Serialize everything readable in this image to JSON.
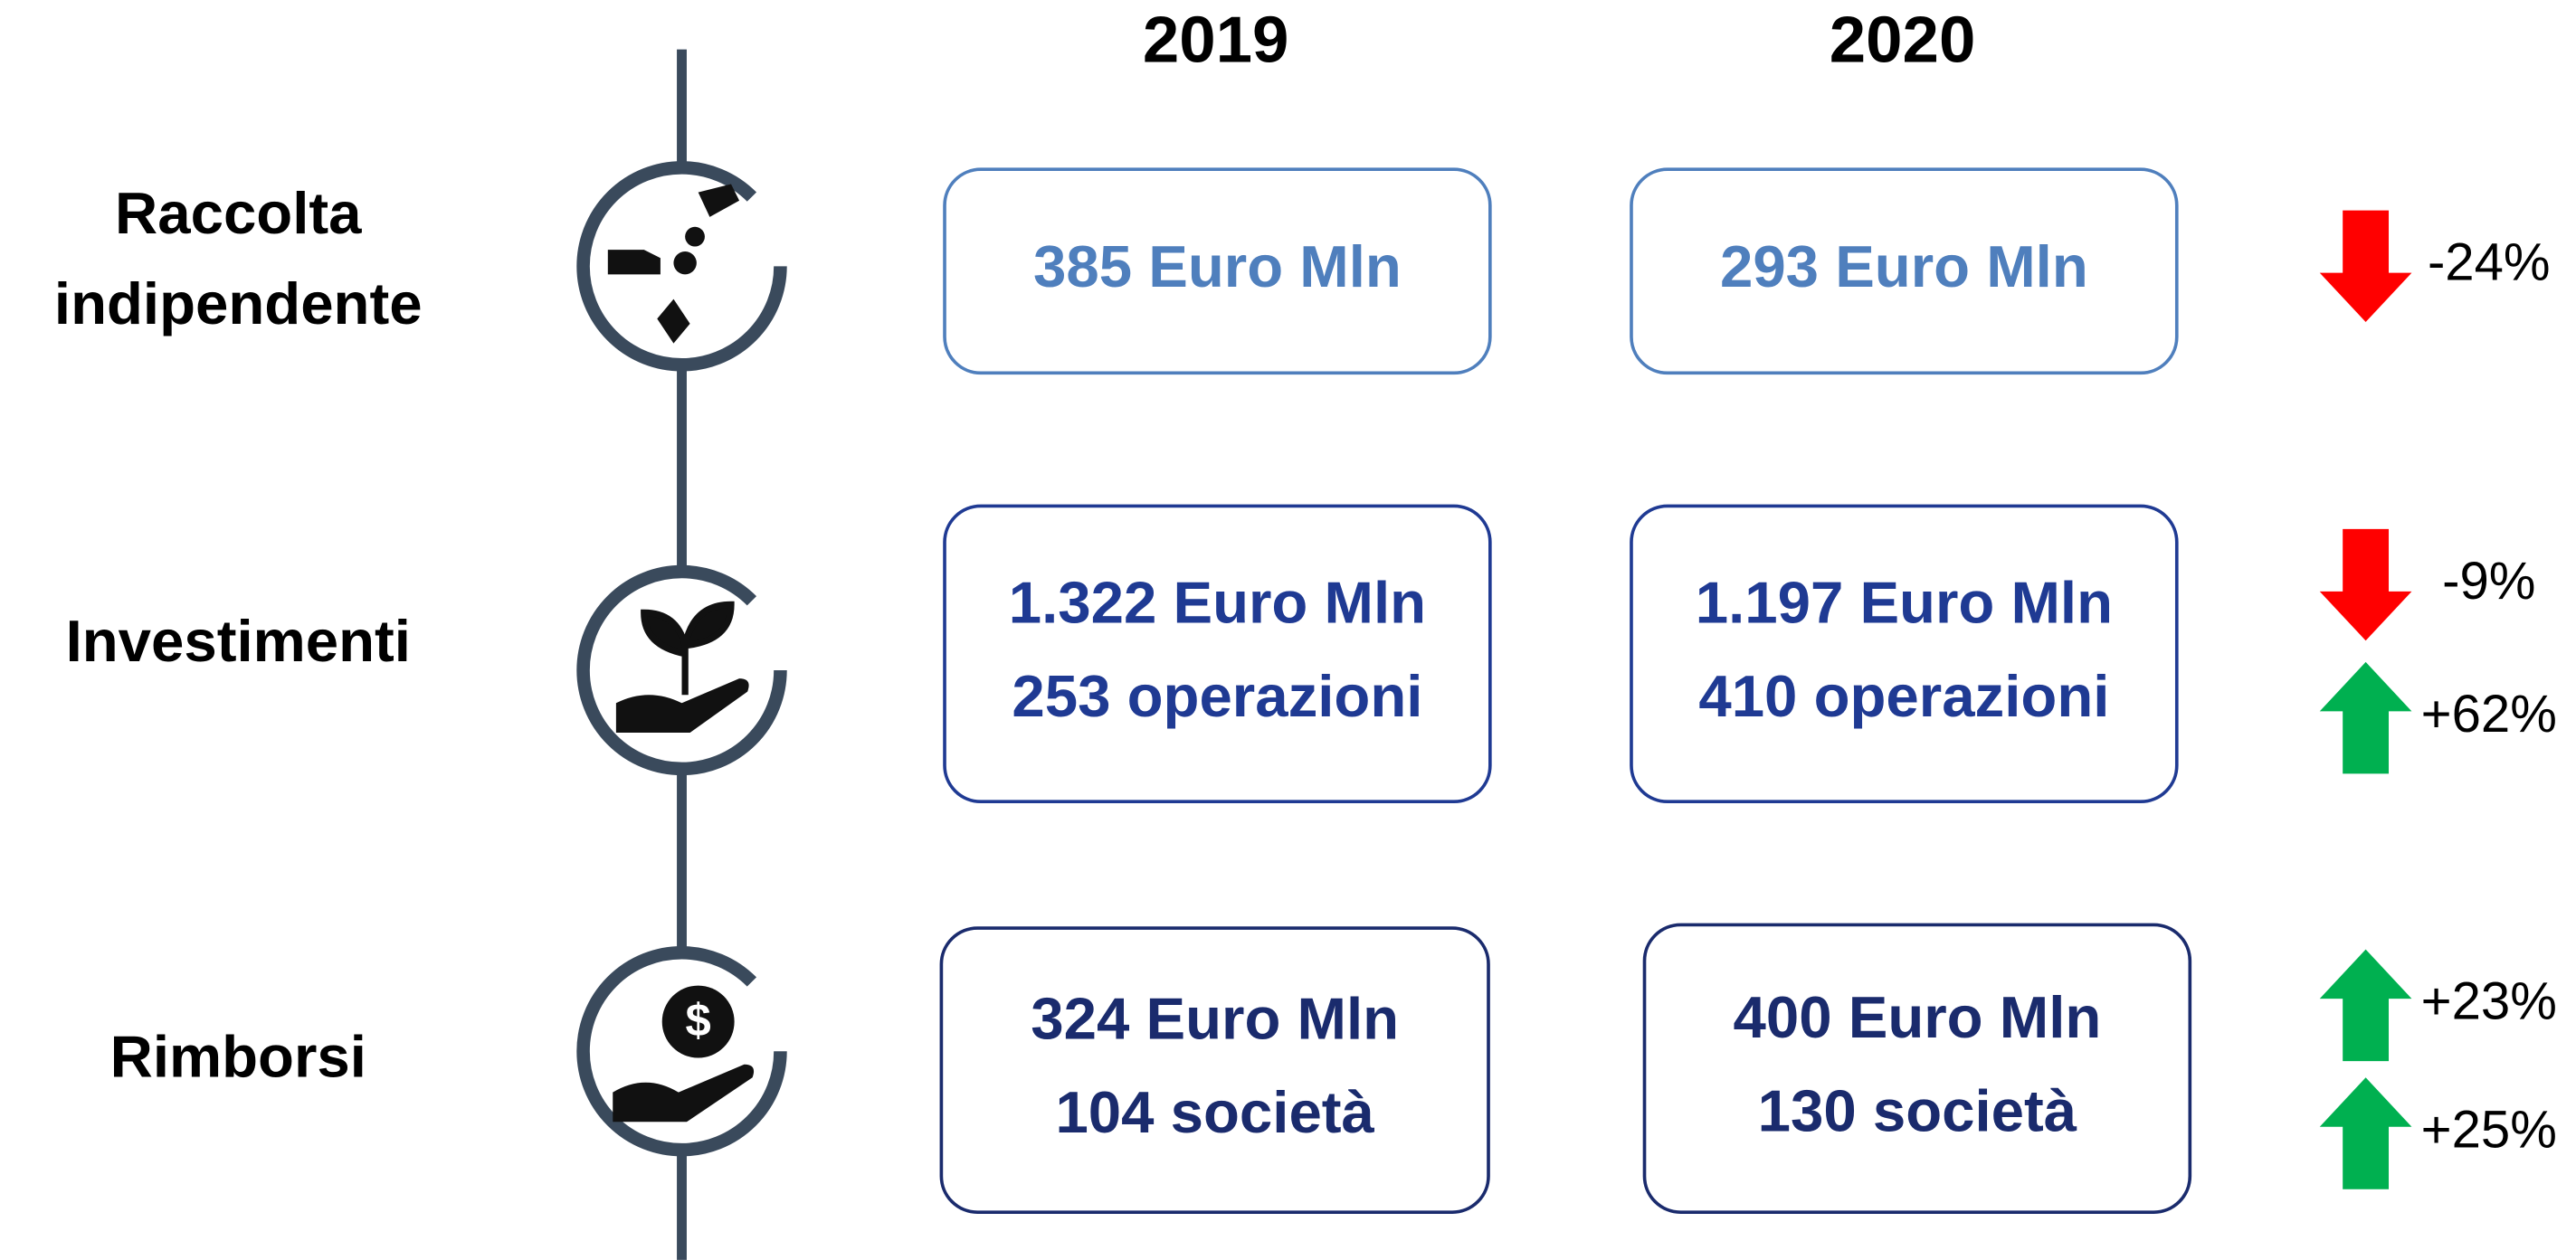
{
  "headers": [
    "2019",
    "2020"
  ],
  "rows": [
    {
      "label": [
        "Raccolta",
        "indipendente"
      ],
      "cells": [
        [
          "385 Euro Mln"
        ],
        [
          "293 Euro Mln"
        ]
      ],
      "color": "#4f7fbd",
      "changes": [
        {
          "direction": "down",
          "text": "-24%",
          "color": "#ff0000"
        }
      ]
    },
    {
      "label": [
        "Investimenti"
      ],
      "cells": [
        [
          "1.322 Euro Mln",
          "253 operazioni"
        ],
        [
          "1.197 Euro Mln",
          "410 operazioni"
        ]
      ],
      "color": "#1f3a93",
      "changes": [
        {
          "direction": "down",
          "text": "-9%",
          "color": "#ff0000"
        },
        {
          "direction": "up",
          "text": "+62%",
          "color": "#00b050"
        }
      ]
    },
    {
      "label": [
        "Rimborsi"
      ],
      "cells": [
        [
          "324 Euro Mln",
          "104 società"
        ],
        [
          "400 Euro Mln",
          "130 società"
        ]
      ],
      "color": "#1a2b6d",
      "changes": [
        {
          "direction": "up",
          "text": "+23%",
          "color": "#00b050"
        },
        {
          "direction": "up",
          "text": "+25%",
          "color": "#00b050"
        }
      ]
    }
  ]
}
